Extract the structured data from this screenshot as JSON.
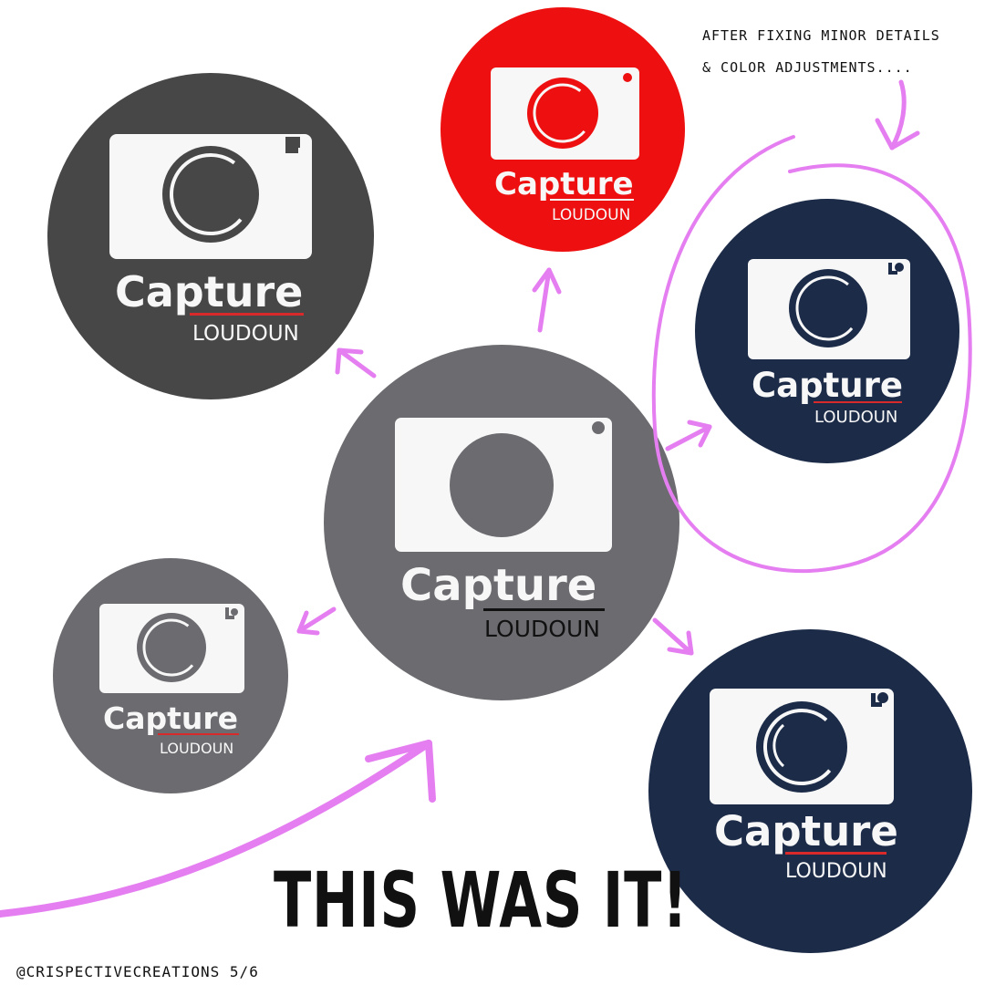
{
  "colors": {
    "accent_stroke": "#e57ef0",
    "wordmark_underline": "#d82a2a",
    "body_white": "#f7f7f7"
  },
  "logos": [
    {
      "name": "logo-dark-gray",
      "brand": "Capture",
      "region": "LOUDOUN",
      "background": "#474747",
      "lens": "#474747"
    },
    {
      "name": "logo-red",
      "brand": "Capture",
      "region": "LOUDOUN",
      "background": "#ee1010",
      "lens": "#ee1010"
    },
    {
      "name": "logo-gray-original",
      "brand": "Capture",
      "region": "LOUDOUN",
      "background": "#6c6b70",
      "lens": "#6c6b70"
    },
    {
      "name": "logo-gray-small",
      "brand": "Capture",
      "region": "LOUDOUN",
      "background": "#6c6b70",
      "lens": "#6c6b70"
    },
    {
      "name": "logo-navy",
      "brand": "Capture",
      "region": "LOUDOUN",
      "background": "#1c2b48",
      "lens": "#1c2b48"
    },
    {
      "name": "logo-navy-final",
      "brand": "Capture",
      "region": "LOUDOUN",
      "background": "#1c2b48",
      "lens": "#1c2b48"
    }
  ],
  "annotation": {
    "line1": "AFTER FIXING MINOR DETAILS",
    "line2": "& COLOR ADJUSTMENTS...."
  },
  "headline": "THIS WAS IT!",
  "footer": "@CRISPECTIVECREATIONS  5/6"
}
